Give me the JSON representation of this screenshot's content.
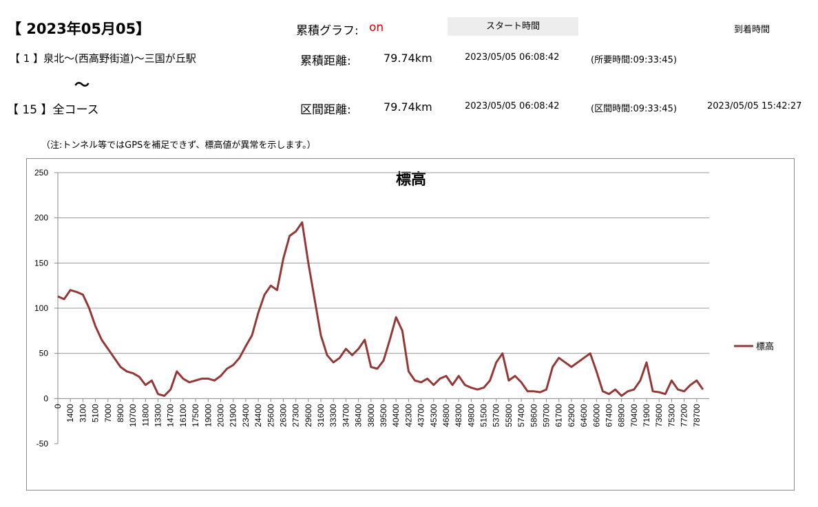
{
  "header": {
    "date": "【 2023年05月05】",
    "graph_label": "累積グラフ:",
    "graph_state": "on",
    "start_button": "スタート時間",
    "arrival_label": "到着時間",
    "row1": {
      "route": "【 1 】泉北～(西高野街道)～三国が丘駅",
      "distance_label": "累積距離:",
      "distance": "79.74km",
      "start": "2023/05/05 06:08:42",
      "elapsed": "(所要時間:09:33:45)"
    },
    "tilde": "～",
    "row2": {
      "route": "【 15 】全コース",
      "distance_label": "区間距離:",
      "distance": "79.74km",
      "start": "2023/05/05 06:08:42",
      "elapsed": "(区間時間:09:33:45)",
      "arrival": "2023/05/05 15:42:27"
    },
    "note": "（注:トンネル等ではGPSを補足できず、標高値が異常を示します。）"
  },
  "chart_data": {
    "type": "line",
    "title": "標高",
    "categories": [
      "0",
      null,
      "1400",
      null,
      "3100",
      null,
      "5100",
      null,
      "7000",
      null,
      "8900",
      null,
      "10700",
      null,
      "11800",
      null,
      "13300",
      null,
      "14700",
      null,
      "16100",
      null,
      "17500",
      null,
      "19000",
      null,
      "20300",
      null,
      "21900",
      null,
      "23400",
      null,
      "24400",
      null,
      "25600",
      null,
      "26300",
      null,
      "27300",
      null,
      "29600",
      null,
      "31600",
      null,
      "33300",
      null,
      "34700",
      null,
      "36400",
      null,
      "38000",
      null,
      "39500",
      null,
      "40400",
      null,
      "42300",
      null,
      "43700",
      null,
      "45300",
      null,
      "46800",
      null,
      "48300",
      null,
      "49800",
      null,
      "51500",
      null,
      "53700",
      null,
      "55800",
      null,
      "57400",
      null,
      "58600",
      null,
      "59700",
      null,
      "61700",
      null,
      "62900",
      null,
      "64600",
      null,
      "66000",
      null,
      "67400",
      null,
      "68900",
      null,
      "70400",
      null,
      "71900",
      null,
      "73600",
      null,
      "75300",
      null,
      "77200",
      null,
      "78700",
      null
    ],
    "series": [
      {
        "name": "標高",
        "color": "#953735",
        "values": [
          113,
          110,
          120,
          118,
          115,
          100,
          80,
          65,
          55,
          45,
          35,
          30,
          28,
          24,
          15,
          20,
          5,
          3,
          10,
          30,
          22,
          18,
          20,
          22,
          22,
          20,
          25,
          33,
          37,
          45,
          58,
          70,
          95,
          115,
          125,
          120,
          155,
          180,
          185,
          195,
          150,
          110,
          70,
          48,
          40,
          45,
          55,
          48,
          55,
          65,
          35,
          33,
          42,
          65,
          90,
          75,
          30,
          20,
          18,
          22,
          15,
          22,
          25,
          15,
          25,
          15,
          12,
          10,
          12,
          20,
          40,
          50,
          20,
          25,
          18,
          8,
          8,
          7,
          10,
          35,
          45,
          40,
          35,
          40,
          45,
          50,
          30,
          8,
          5,
          10,
          3,
          8,
          10,
          20,
          40,
          8,
          7,
          5,
          20,
          10,
          8,
          15,
          20,
          10
        ]
      }
    ],
    "ylim": [
      -50,
      250
    ],
    "yticks": [
      -50,
      0,
      50,
      100,
      150,
      200,
      250
    ],
    "grid": true,
    "legend": "right"
  }
}
